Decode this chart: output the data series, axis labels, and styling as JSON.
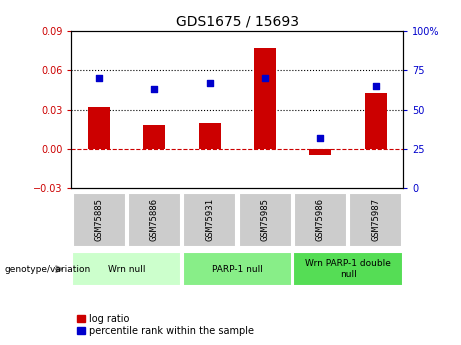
{
  "title": "GDS1675 / 15693",
  "categories": [
    "GSM75885",
    "GSM75886",
    "GSM75931",
    "GSM75985",
    "GSM75986",
    "GSM75987"
  ],
  "log_ratio": [
    0.032,
    0.018,
    0.02,
    0.077,
    -0.005,
    0.043
  ],
  "percentile_rank": [
    70,
    63,
    67,
    70,
    32,
    65
  ],
  "ylim_left": [
    -0.03,
    0.09
  ],
  "ylim_right": [
    0,
    100
  ],
  "yticks_left": [
    -0.03,
    0,
    0.03,
    0.06,
    0.09
  ],
  "yticks_right": [
    0,
    25,
    50,
    75,
    100
  ],
  "bar_color": "#cc0000",
  "dot_color": "#0000cc",
  "hline_color": "#cc0000",
  "dotted_line_color": "#000000",
  "bg_color": "#ffffff",
  "genotype_groups": [
    {
      "label": "Wrn null",
      "start": 0,
      "end": 2,
      "color": "#ccffcc"
    },
    {
      "label": "PARP-1 null",
      "start": 2,
      "end": 4,
      "color": "#88ee88"
    },
    {
      "label": "Wrn PARP-1 double\nnull",
      "start": 4,
      "end": 6,
      "color": "#55dd55"
    }
  ],
  "gsm_bg_color": "#cccccc",
  "legend_red_label": "log ratio",
  "legend_blue_label": "percentile rank within the sample",
  "genotype_label": "genotype/variation",
  "title_fontsize": 10,
  "tick_fontsize": 7,
  "label_fontsize": 7,
  "bar_width": 0.4
}
